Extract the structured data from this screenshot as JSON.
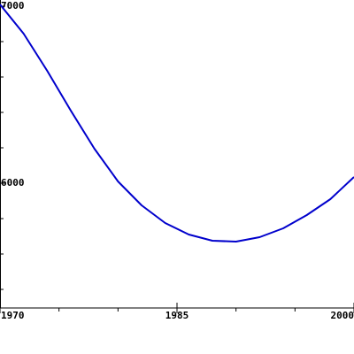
{
  "chart_data": {
    "type": "line",
    "x": [
      1970,
      1972,
      1974,
      1976,
      1978,
      1980,
      1982,
      1984,
      1986,
      1988,
      1990,
      1992,
      1994,
      1996,
      1998,
      2000
    ],
    "series": [
      {
        "color": "#0000cc",
        "values": [
          7010,
          6845,
          6635,
          6410,
          6195,
          6010,
          5875,
          5775,
          5710,
          5675,
          5670,
          5695,
          5745,
          5820,
          5910,
          6035
        ]
      }
    ],
    "xlim": [
      1970,
      2000
    ],
    "xticks": [
      1970,
      1985,
      2000
    ],
    "xminor_ticks": [
      1975,
      1980,
      1990,
      1995
    ],
    "ylim": [
      5300,
      7035
    ],
    "yticks": [
      7000,
      6000
    ],
    "yminor_ticks": [
      6800,
      6600,
      6400,
      6200,
      5800,
      5600,
      5400
    ]
  }
}
